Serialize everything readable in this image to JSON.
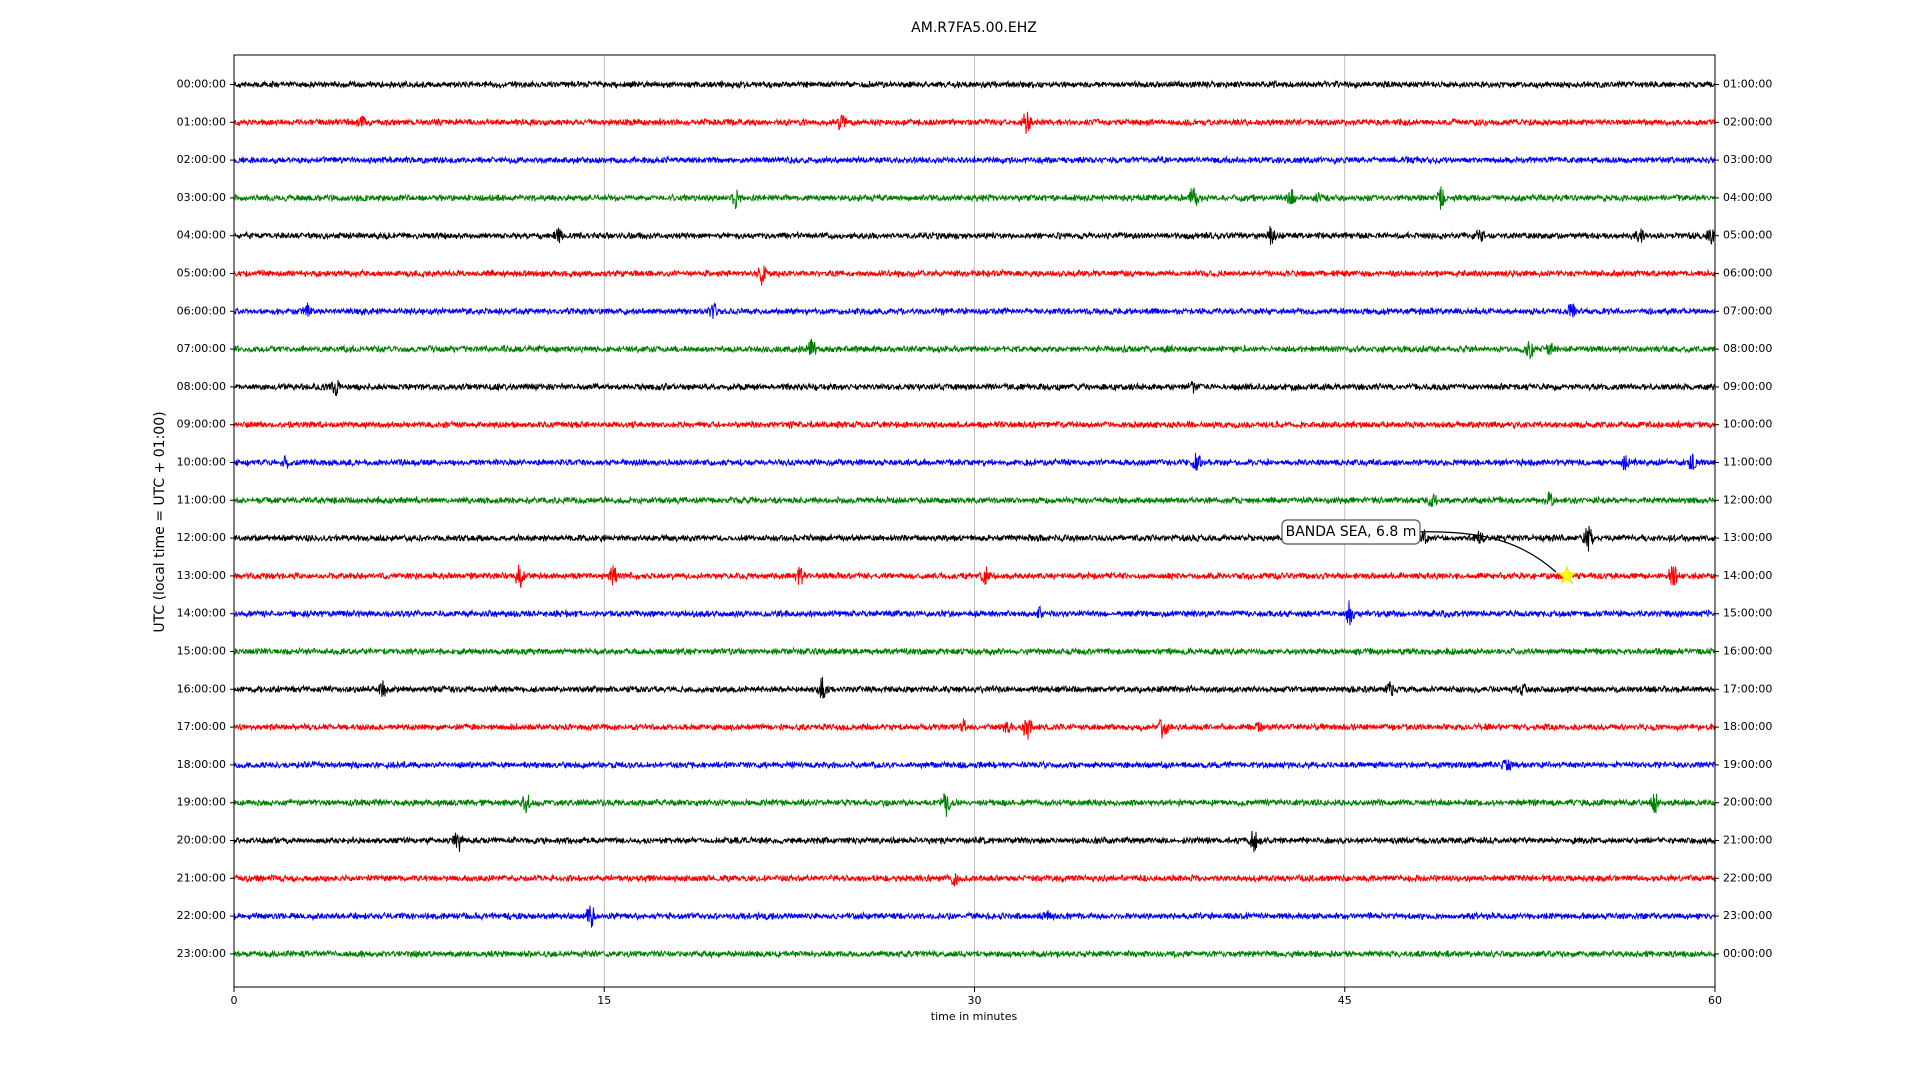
{
  "chart_data": {
    "type": "dayplot",
    "title": "AM.R7FA5.00.EHZ",
    "x_label": "time in minutes",
    "y_label": "UTC (local time = UTC + 01:00)",
    "categories": [
      "00:00:00",
      "01:00:00",
      "02:00:00",
      "03:00:00",
      "04:00:00",
      "05:00:00",
      "06:00:00",
      "07:00:00",
      "08:00:00",
      "09:00:00",
      "10:00:00",
      "11:00:00",
      "12:00:00",
      "13:00:00",
      "14:00:00",
      "15:00:00",
      "16:00:00",
      "17:00:00",
      "18:00:00",
      "19:00:00",
      "20:00:00",
      "21:00:00",
      "22:00:00",
      "23:00:00"
    ],
    "right_labels": [
      "01:00:00",
      "02:00:00",
      "03:00:00",
      "04:00:00",
      "05:00:00",
      "06:00:00",
      "07:00:00",
      "08:00:00",
      "09:00:00",
      "10:00:00",
      "11:00:00",
      "12:00:00",
      "13:00:00",
      "14:00:00",
      "15:00:00",
      "16:00:00",
      "17:00:00",
      "18:00:00",
      "19:00:00",
      "20:00:00",
      "21:00:00",
      "22:00:00",
      "23:00:00",
      "00:00:00"
    ],
    "colors": [
      "#000000",
      "#ff0000",
      "#0000ff",
      "#008000"
    ],
    "xlim": [
      0,
      60
    ],
    "xticks": [
      0,
      15,
      30,
      45,
      60
    ],
    "grid": true,
    "event": {
      "label": "BANDA SEA, 6.8 m",
      "x": 54,
      "row": "13:00:00"
    }
  }
}
